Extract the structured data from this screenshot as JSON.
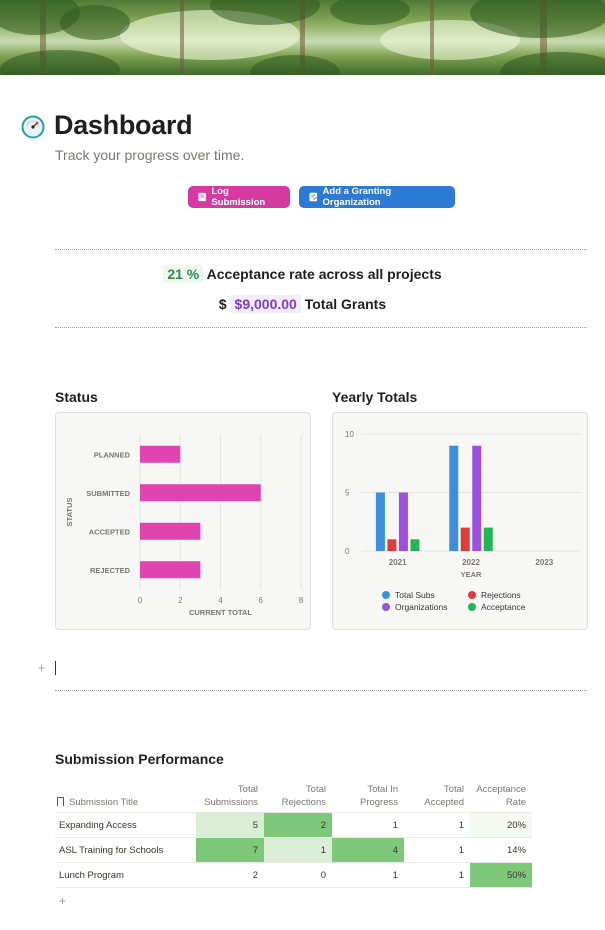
{
  "page": {
    "title": "Dashboard",
    "subtitle": "Track your progress over time.",
    "icon": "gauge-icon"
  },
  "buttons": {
    "log_submission": "Log Submission",
    "add_org": "Add a Granting Organization"
  },
  "stats": {
    "acceptance_value": "21 %",
    "acceptance_label": "Acceptance rate across all projects",
    "currency": "$",
    "grants_value": "$9,000.00",
    "grants_label": "Total Grants"
  },
  "sections": {
    "status": "Status",
    "yearly": "Yearly Totals",
    "performance": "Submission Performance"
  },
  "chart_data": [
    {
      "type": "bar",
      "orientation": "horizontal",
      "categories": [
        "PLANNED",
        "SUBMITTED",
        "ACCEPTED",
        "REJECTED"
      ],
      "values": [
        2,
        6,
        3,
        3
      ],
      "xlabel": "CURRENT TOTAL",
      "ylabel": "STATUS",
      "xlim": [
        0,
        8
      ],
      "xticks": [
        0,
        2,
        4,
        6,
        8
      ],
      "grid": true,
      "color": "#e044b0"
    },
    {
      "type": "bar",
      "categories": [
        "2021",
        "2022",
        "2023"
      ],
      "xlabel": "YEAR",
      "ylim": [
        0,
        10
      ],
      "yticks": [
        0,
        5,
        10
      ],
      "grid": true,
      "legend_position": "bottom",
      "series": [
        {
          "name": "Total Subs",
          "values": [
            5,
            9,
            0
          ],
          "color": "#3d8fe0"
        },
        {
          "name": "Rejections",
          "values": [
            1,
            2,
            0
          ],
          "color": "#e03b3b"
        },
        {
          "name": "Organizations",
          "values": [
            5,
            9,
            0
          ],
          "color": "#9b51e0"
        },
        {
          "name": "Acceptance",
          "values": [
            1,
            2,
            0
          ],
          "color": "#22b455"
        }
      ]
    }
  ],
  "table": {
    "headers": {
      "title": "Submission Title",
      "subs": "Total Submissions",
      "rej": "Total Rejections",
      "prog": "Total In Progress",
      "acc": "Total Accepted",
      "rate": "Acceptance Rate"
    },
    "rows": [
      {
        "title": "Expanding Access",
        "subs": "5",
        "rej": "2",
        "prog": "1",
        "acc": "1",
        "rate": "20%"
      },
      {
        "title": "ASL Training for Schools",
        "subs": "7",
        "rej": "1",
        "prog": "4",
        "acc": "1",
        "rate": "14%"
      },
      {
        "title": "Lunch Program",
        "subs": "2",
        "rej": "0",
        "prog": "1",
        "acc": "1",
        "rate": "50%"
      }
    ],
    "highlight_colors": {
      "strong": "#7ec87a",
      "light": "#d9eed4",
      "faint": "#f4faf2"
    }
  },
  "add_symbol": "+"
}
